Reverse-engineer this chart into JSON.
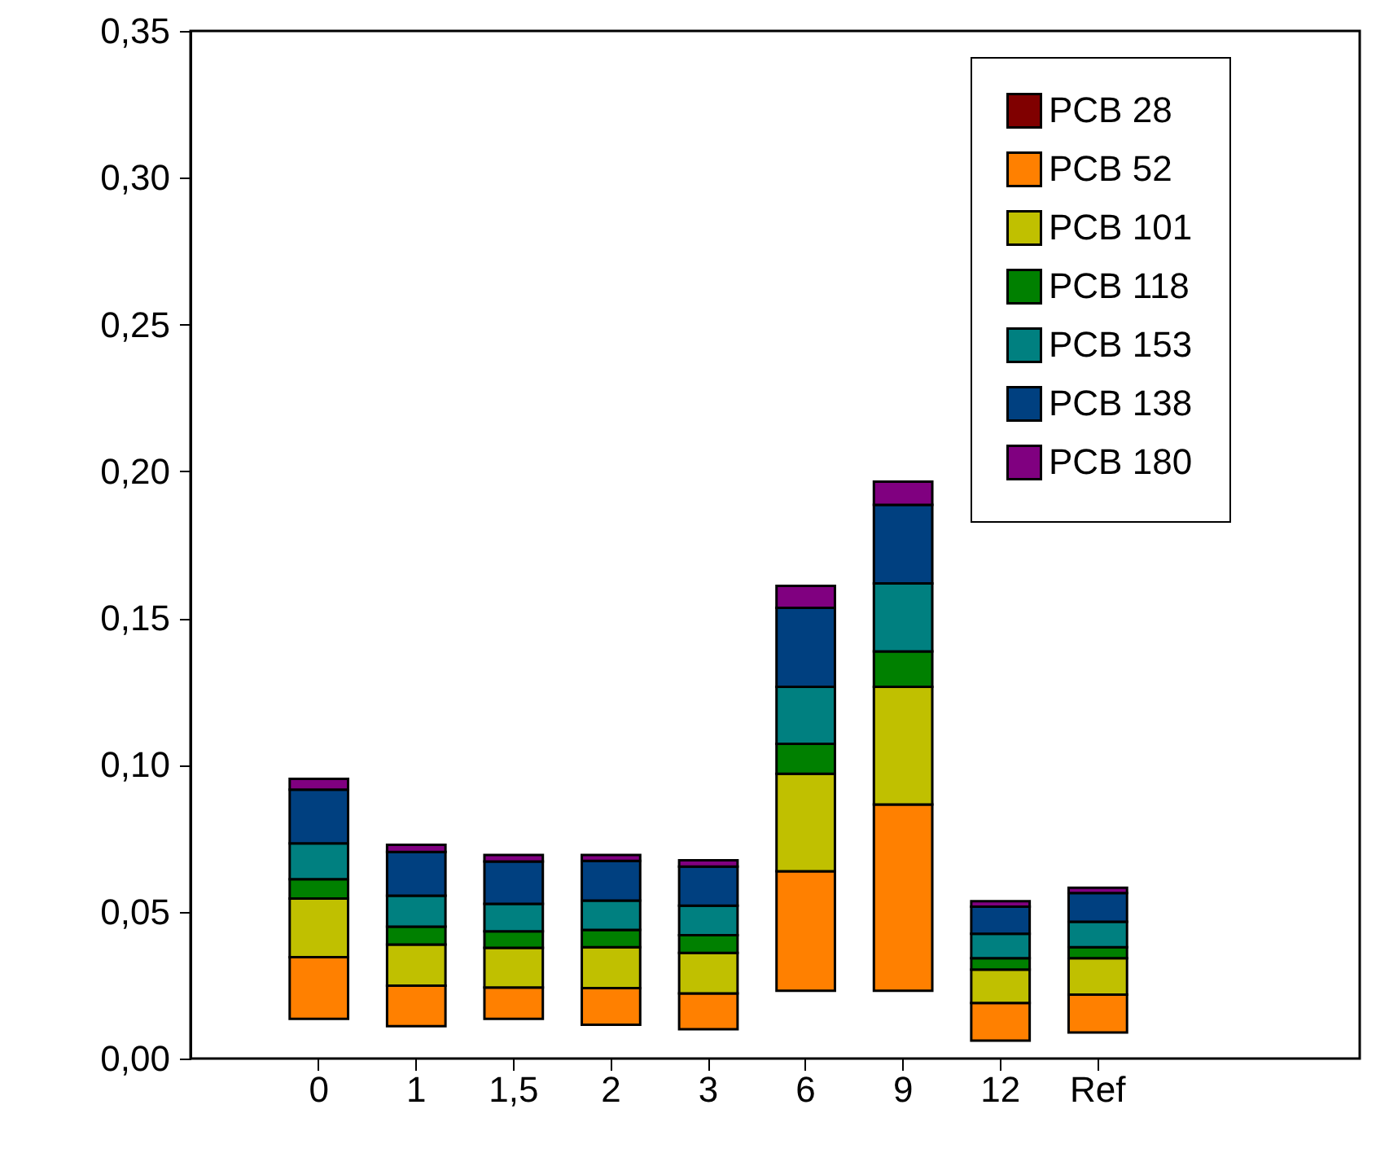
{
  "chart_data": {
    "type": "bar",
    "categories": [
      "0",
      "1",
      "1,5",
      "2",
      "3",
      "6",
      "9",
      "12",
      "Ref"
    ],
    "series": [
      {
        "name": "PCB 28",
        "color": "#800000",
        "values": [
          null,
          null,
          null,
          null,
          null,
          null,
          null,
          null,
          null
        ]
      },
      {
        "name": "PCB 52",
        "color": "#ff8000",
        "base": [
          0.0135,
          0.011,
          0.0135,
          0.0115,
          0.01,
          0.0231,
          0.0231,
          0.0061,
          0.0089
        ],
        "values": [
          0.021,
          0.0138,
          0.0107,
          0.0125,
          0.0122,
          0.0407,
          0.0634,
          0.0128,
          0.0129
        ]
      },
      {
        "name": "PCB 101",
        "color": "#c0c000",
        "base": [
          0.0345,
          0.0248,
          0.0242,
          0.024,
          0.0222,
          0.0638,
          0.0865,
          0.0189,
          0.0218
        ],
        "values": [
          0.02,
          0.014,
          0.0135,
          0.0139,
          0.0138,
          0.0332,
          0.0401,
          0.0114,
          0.0124
        ]
      },
      {
        "name": "PCB 118",
        "color": "#008000",
        "base": [
          0.0545,
          0.0388,
          0.0377,
          0.0379,
          0.036,
          0.097,
          0.1266,
          0.0303,
          0.0342
        ],
        "values": [
          0.0066,
          0.0061,
          0.0056,
          0.0059,
          0.006,
          0.0102,
          0.0121,
          0.0039,
          0.0037
        ]
      },
      {
        "name": "PCB 153",
        "color": "#008080",
        "base": [
          0.0611,
          0.0449,
          0.0433,
          0.0438,
          0.042,
          0.1072,
          0.1387,
          0.0342,
          0.0379
        ],
        "values": [
          0.0122,
          0.0106,
          0.0094,
          0.01,
          0.0101,
          0.0194,
          0.0231,
          0.0083,
          0.0087
        ]
      },
      {
        "name": "PCB 138",
        "color": "#004080",
        "base": [
          0.0733,
          0.0555,
          0.0527,
          0.0538,
          0.0521,
          0.1266,
          0.1618,
          0.0425,
          0.0466
        ],
        "values": [
          0.0183,
          0.0149,
          0.0144,
          0.0135,
          0.0133,
          0.0269,
          0.0268,
          0.0092,
          0.0098
        ]
      },
      {
        "name": "PCB 180",
        "color": "#800080",
        "base": [
          0.0916,
          0.0704,
          0.0671,
          0.0673,
          0.0654,
          0.1535,
          0.1886,
          0.0517,
          0.0564
        ],
        "values": [
          0.0037,
          0.0024,
          0.0022,
          0.002,
          0.0021,
          0.0075,
          0.0079,
          0.0019,
          0.0018
        ]
      }
    ],
    "ylim": [
      0,
      0.35
    ],
    "yticks": [
      {
        "value": 0,
        "label": "0,00"
      },
      {
        "value": 0.05,
        "label": "0,05"
      },
      {
        "value": 0.1,
        "label": "0,10"
      },
      {
        "value": 0.15,
        "label": "0,15"
      },
      {
        "value": 0.2,
        "label": "0,20"
      },
      {
        "value": 0.25,
        "label": "0,25"
      },
      {
        "value": 0.3,
        "label": "0,30"
      },
      {
        "value": 0.35,
        "label": "0,35"
      }
    ],
    "grid": false,
    "legend": "top right"
  }
}
